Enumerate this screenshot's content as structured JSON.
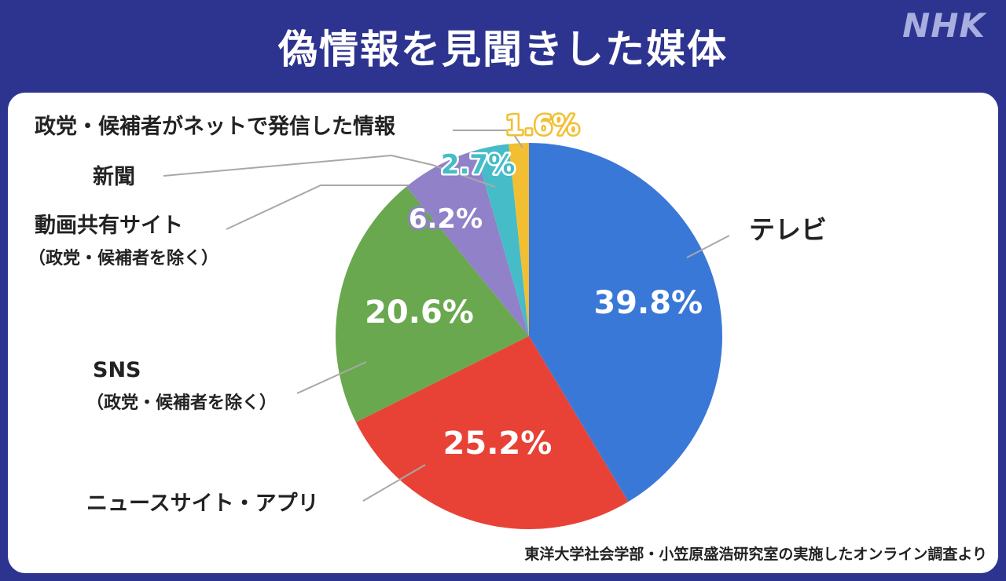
{
  "header": {
    "title": "偽情報を見聞きした媒体",
    "logo": "NHK"
  },
  "source": "東洋大学社会学部・小笠原盛浩研究室の実施したオンライン調査より",
  "chart_data": {
    "type": "pie",
    "title": "偽情報を見聞きした媒体",
    "unit": "%",
    "start": "12 o'clock",
    "direction": "clockwise",
    "slices": [
      {
        "label": "テレビ",
        "sublabel": "",
        "value": 39.8,
        "value_label": "39.8%",
        "color": "#3a78d8"
      },
      {
        "label": "ニュースサイト・アプリ",
        "sublabel": "",
        "value": 25.2,
        "value_label": "25.2%",
        "color": "#e84236"
      },
      {
        "label": "SNS",
        "sublabel": "（政党・候補者を除く）",
        "value": 20.6,
        "value_label": "20.6%",
        "color": "#6aa84f"
      },
      {
        "label": "動画共有サイト",
        "sublabel": "（政党・候補者を除く）",
        "value": 6.2,
        "value_label": "6.2%",
        "color": "#9081c8"
      },
      {
        "label": "新聞",
        "sublabel": "",
        "value": 2.7,
        "value_label": "2.7%",
        "color": "#46bcc8"
      },
      {
        "label": "政党・候補者がネットで発信した情報",
        "sublabel": "",
        "value": 1.6,
        "value_label": "1.6%",
        "color": "#f2bf32"
      }
    ]
  }
}
